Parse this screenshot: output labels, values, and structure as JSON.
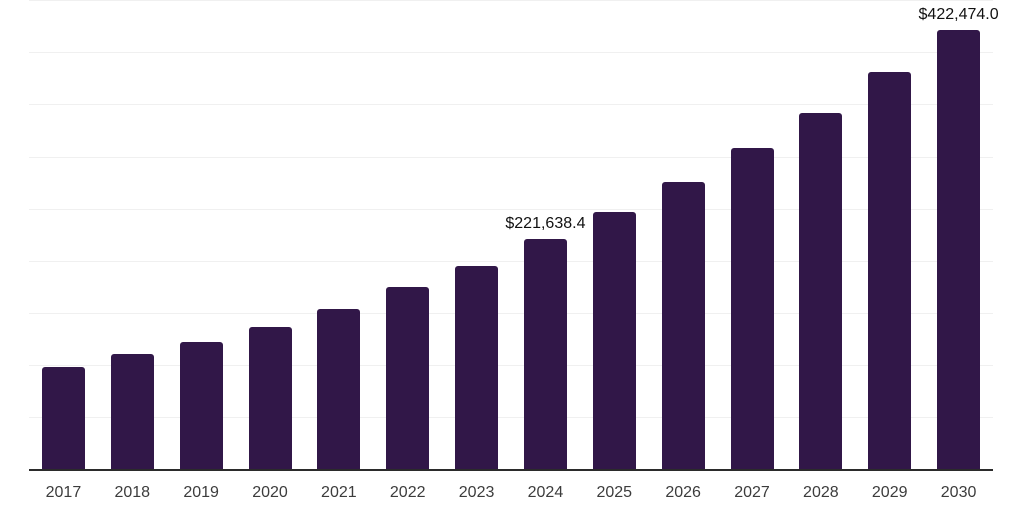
{
  "chart_data": {
    "type": "bar",
    "title": "",
    "xlabel": "",
    "ylabel": "",
    "categories": [
      "2017",
      "2018",
      "2019",
      "2020",
      "2021",
      "2022",
      "2023",
      "2024",
      "2025",
      "2026",
      "2027",
      "2028",
      "2029",
      "2030"
    ],
    "values": [
      99200,
      111000,
      122600,
      137000,
      154300,
      175400,
      196100,
      221638.4,
      247900,
      276600,
      309200,
      343000,
      382200,
      422474.0
    ],
    "value_labels": [
      {
        "category": "2024",
        "text": "$221,638.4"
      },
      {
        "category": "2030",
        "text": "$422,474.0"
      }
    ],
    "ylim": [
      0,
      451200
    ],
    "gridline_step": 50000,
    "grid": "horizontal-only",
    "legend": "none",
    "y_axis_ticks_visible": false,
    "bar_color": "#311748",
    "axis_line_color": "#2b2b2b",
    "gridline_color": "#f0f0f0",
    "tick_label_color": "#3c3c3c",
    "value_label_color": "#111111",
    "background_color": "#ffffff"
  }
}
